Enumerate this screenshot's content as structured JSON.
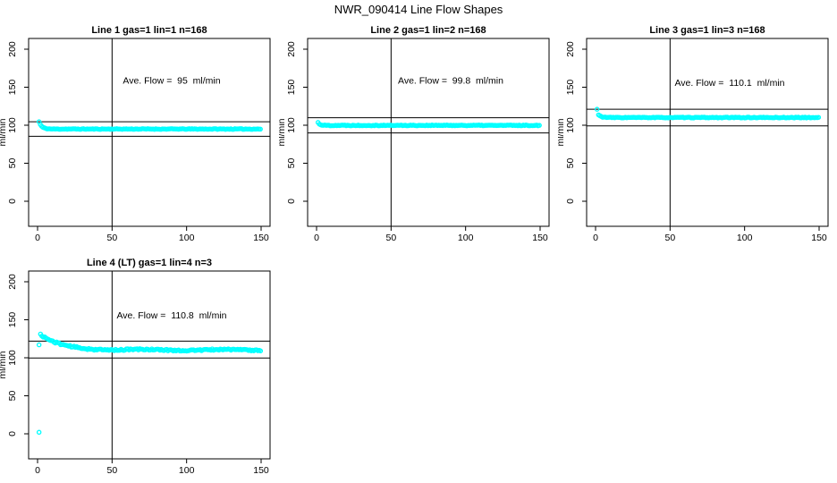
{
  "figure": {
    "title": "NWR_090414  Line Flow Shapes",
    "background": "#FFFFFF"
  },
  "colors": {
    "points": "#00FFFF",
    "axis": "#000000",
    "text": "#000000"
  },
  "chart_data": [
    {
      "type": "scatter",
      "title": "Line 1 gas=1 lin=1 n=168",
      "annotation": "Ave. Flow =  95  ml/min",
      "annotation_xy": [
        90,
        155
      ],
      "ave_flow_ml_min": 95,
      "n": 168,
      "xlabel": "",
      "ylabel": "ml/min",
      "xlim": [
        0,
        150
      ],
      "ylim": [
        0,
        200
      ],
      "x_ticks": [
        0,
        50,
        100,
        150
      ],
      "y_ticks": [
        0,
        50,
        100,
        150,
        200
      ],
      "vline_x": 50,
      "hlines": [
        85.5,
        104.5
      ],
      "series": {
        "name": "flow",
        "x_start": 1,
        "x_end": 150,
        "x_step": 0.9,
        "start": 104.5,
        "settle": 95,
        "decay_tau": 1.8,
        "noise": 0.45,
        "seed": 11
      },
      "outliers": []
    },
    {
      "type": "scatter",
      "title": "Line 2 gas=1 lin=2 n=168",
      "annotation": "Ave. Flow =  99.8  ml/min",
      "annotation_xy": [
        90,
        155
      ],
      "ave_flow_ml_min": 99.8,
      "n": 168,
      "xlabel": "",
      "ylabel": "ml/min",
      "xlim": [
        0,
        150
      ],
      "ylim": [
        0,
        200
      ],
      "x_ticks": [
        0,
        50,
        100,
        150
      ],
      "y_ticks": [
        0,
        50,
        100,
        150,
        200
      ],
      "vline_x": 50,
      "hlines": [
        89.8,
        109.8
      ],
      "series": {
        "name": "flow",
        "x_start": 1,
        "x_end": 150,
        "x_step": 0.9,
        "start": 103.5,
        "settle": 99.8,
        "decay_tau": 1.3,
        "noise": 0.5,
        "seed": 22
      },
      "outliers": []
    },
    {
      "type": "scatter",
      "title": "Line 3 gas=1 lin=3 n=168",
      "annotation": "Ave. Flow =  110.1  ml/min",
      "annotation_xy": [
        90,
        152
      ],
      "ave_flow_ml_min": 110.1,
      "n": 168,
      "xlabel": "",
      "ylabel": "ml/min",
      "xlim": [
        0,
        150
      ],
      "ylim": [
        0,
        200
      ],
      "x_ticks": [
        0,
        50,
        100,
        150
      ],
      "y_ticks": [
        0,
        50,
        100,
        150,
        200
      ],
      "vline_x": 50,
      "hlines": [
        99.1,
        121.1
      ],
      "series": {
        "name": "flow",
        "x_start": 2,
        "x_end": 150,
        "x_step": 0.9,
        "start": 113.5,
        "settle": 110.1,
        "decay_tau": 2,
        "noise": 0.5,
        "seed": 33
      },
      "outliers": [
        [
          1,
          121
        ]
      ]
    },
    {
      "type": "scatter",
      "title": "Line 4 (LT) gas=1 lin=4 n=3",
      "annotation": "Ave. Flow =  110.8  ml/min",
      "annotation_xy": [
        90,
        152
      ],
      "ave_flow_ml_min": 110.8,
      "n": 3,
      "xlabel": "",
      "ylabel": "ml/min",
      "xlim": [
        0,
        150
      ],
      "ylim": [
        0,
        200
      ],
      "x_ticks": [
        0,
        50,
        100,
        150
      ],
      "y_ticks": [
        0,
        50,
        100,
        150,
        200
      ],
      "vline_x": 50,
      "hlines": [
        99.7,
        121.9
      ],
      "series": {
        "name": "flow",
        "x_start": 2,
        "x_end": 150,
        "x_step": 0.9,
        "start": 130.5,
        "settle": 110.3,
        "decay_tau": 13,
        "noise": 1.0,
        "seed": 44,
        "wobble": {
          "amp": 0.7,
          "period": 55
        }
      },
      "outliers": [
        [
          1,
          117
        ],
        [
          1,
          2
        ]
      ]
    }
  ]
}
